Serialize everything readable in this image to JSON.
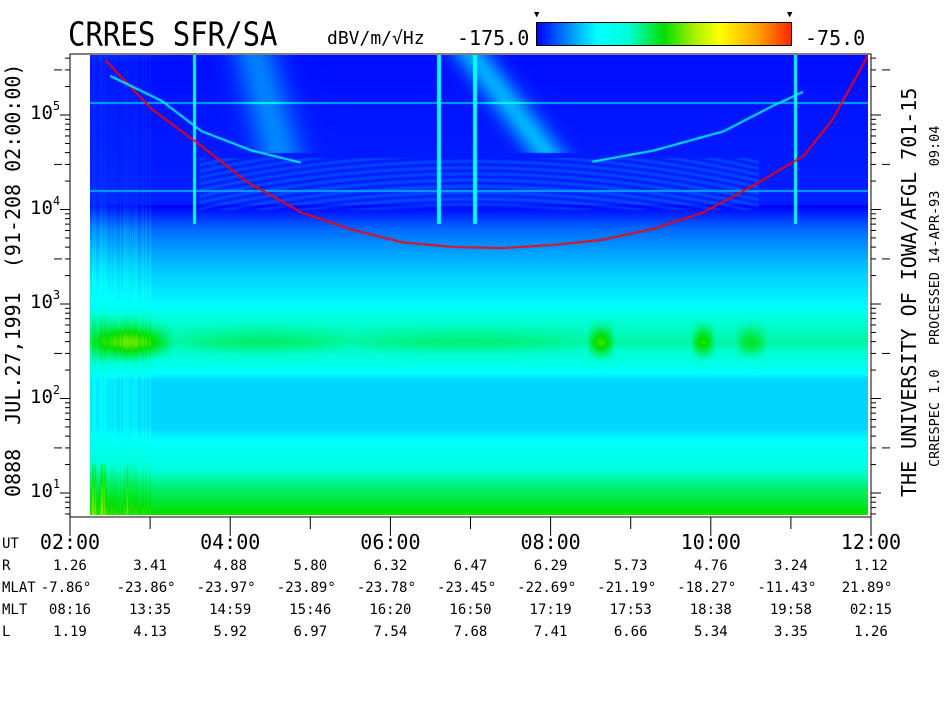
{
  "header": {
    "title": "CRRES SFR/SA",
    "units": "dBV/m/√Hz",
    "colorbar_min_label": "-175.0",
    "colorbar_max_label": "-75.0"
  },
  "left_caption": "0888  JUL.27,1991  (91-208 02:00:00)",
  "right_caption": "THE UNIVERSITY OF IOWA/AFGL 701-15",
  "right_subcaption": "CRRESPEC 1.0   PROCESSED 14-APR-93   09:04",
  "chart_data": {
    "type": "heatmap",
    "title": "CRRES SFR/SA",
    "colorbar": {
      "label": "dBV/m/√Hz",
      "range": [
        -175.0,
        -75.0
      ],
      "stops": [
        {
          "pos": 0.0,
          "color": "#0000ff"
        },
        {
          "pos": 0.18,
          "color": "#00c8ff"
        },
        {
          "pos": 0.24,
          "color": "#00ffff"
        },
        {
          "pos": 0.36,
          "color": "#00ffd8"
        },
        {
          "pos": 0.5,
          "color": "#00e000"
        },
        {
          "pos": 0.62,
          "color": "#a8f000"
        },
        {
          "pos": 0.72,
          "color": "#ffff00"
        },
        {
          "pos": 0.86,
          "color": "#ffaa00"
        },
        {
          "pos": 1.0,
          "color": "#ff2800"
        }
      ]
    },
    "x_axis": {
      "label": "UT",
      "range_hours": [
        2,
        12
      ],
      "tick_labels": [
        "02:00",
        "04:00",
        "06:00",
        "08:00",
        "10:00",
        "12:00"
      ],
      "data_start_hours": 2.25
    },
    "y_axis": {
      "scale": "log",
      "range_hz": [
        5.5,
        440000
      ],
      "tick_labels": [
        {
          "base": "10",
          "exp": "1",
          "value": 10
        },
        {
          "base": "10",
          "exp": "2",
          "value": 100
        },
        {
          "base": "10",
          "exp": "3",
          "value": 1000
        },
        {
          "base": "10",
          "exp": "4",
          "value": 10000
        },
        {
          "base": "10",
          "exp": "5",
          "value": 100000
        }
      ]
    },
    "traces": [
      {
        "color": "#ff0000",
        "style": "dotted",
        "points": [
          [
            2.44,
            380000
          ],
          [
            3.0,
            120000
          ],
          [
            3.63,
            48000
          ],
          [
            4.2,
            20000
          ],
          [
            4.88,
            9500
          ],
          [
            5.5,
            6300
          ],
          [
            6.14,
            4600
          ],
          [
            6.8,
            4100
          ],
          [
            7.39,
            4000
          ],
          [
            8.0,
            4300
          ],
          [
            8.64,
            4900
          ],
          [
            9.3,
            6500
          ],
          [
            9.89,
            9500
          ],
          [
            10.5,
            18000
          ],
          [
            11.15,
            38000
          ],
          [
            11.5,
            90000
          ],
          [
            11.77,
            230000
          ],
          [
            11.95,
            440000
          ]
        ]
      },
      {
        "color": "#00ffff",
        "style": "dotted",
        "points": [
          [
            2.5,
            263000
          ],
          [
            3.13,
            145000
          ],
          [
            3.63,
            69000
          ],
          [
            4.26,
            43000
          ],
          [
            4.88,
            32000
          ]
        ]
      },
      {
        "color": "#00ffff",
        "style": "dotted",
        "points": [
          [
            8.52,
            33000
          ],
          [
            9.27,
            43000
          ],
          [
            10.15,
            69000
          ],
          [
            10.77,
            129000
          ],
          [
            11.15,
            182000
          ]
        ]
      }
    ],
    "ephemeris": {
      "rows": [
        {
          "label": "R",
          "values": [
            "1.26",
            "3.41",
            "4.88",
            "5.80",
            "6.32",
            "6.47",
            "6.29",
            "5.73",
            "4.76",
            "3.24",
            "1.12"
          ]
        },
        {
          "label": "MLAT",
          "values": [
            "-7.86°",
            "-23.86°",
            "-23.97°",
            "-23.89°",
            "-23.78°",
            "-23.45°",
            "-22.69°",
            "-21.19°",
            "-18.27°",
            "-11.43°",
            "21.89°"
          ]
        },
        {
          "label": "MLT",
          "values": [
            "08:16",
            "13:35",
            "14:59",
            "15:46",
            "16:20",
            "16:50",
            "17:19",
            "17:53",
            "18:38",
            "19:58",
            "02:15"
          ]
        },
        {
          "label": "L",
          "values": [
            "1.19",
            "4.13",
            "5.92",
            "6.97",
            "7.54",
            "7.68",
            "7.41",
            "6.66",
            "5.34",
            "3.35",
            "1.26"
          ]
        }
      ]
    }
  }
}
